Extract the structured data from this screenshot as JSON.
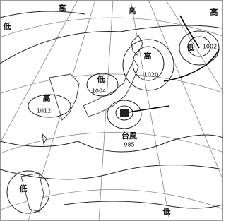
{
  "systems": [
    {
      "label": "低"
    },
    {
      "label": "高"
    },
    {
      "label": "高"
    },
    {
      "label": "高"
    },
    {
      "label": "高",
      "pressure": 1012
    },
    {
      "label": "低",
      "pressure": 1004
    },
    {
      "label": "高",
      "pressure": 1020
    },
    {
      "label": "低",
      "pressure": 1002
    },
    {
      "label": "台風",
      "pressure": 985
    },
    {
      "label": "低"
    },
    {
      "label": "低"
    }
  ]
}
